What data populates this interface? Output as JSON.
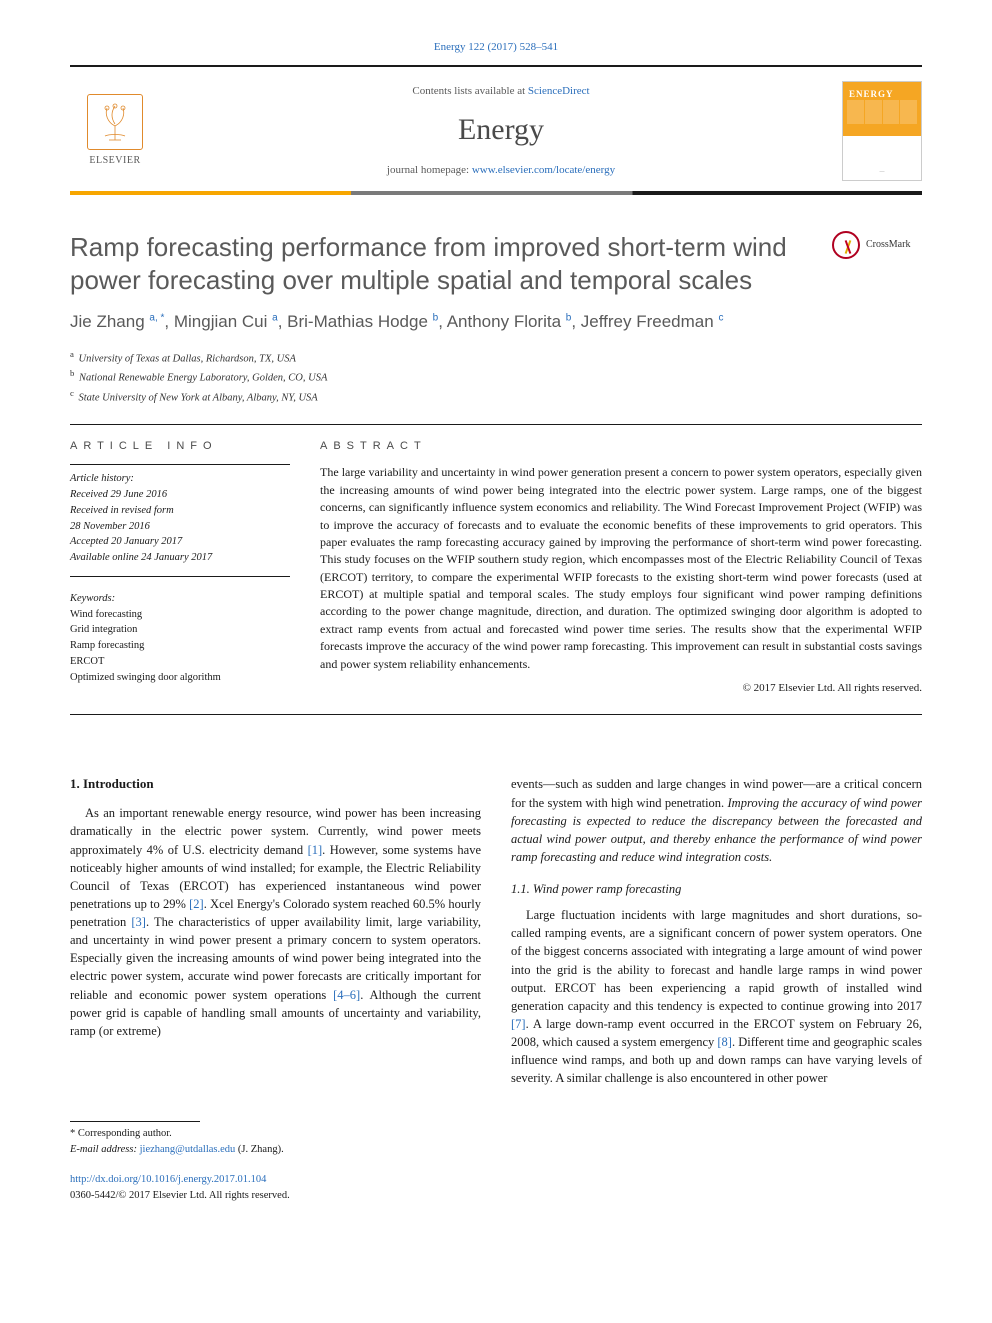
{
  "citation": "Energy 122 (2017) 528–541",
  "header": {
    "contents_prefix": "Contents lists available at ",
    "contents_link": "ScienceDirect",
    "journal": "Energy",
    "homepage_prefix": "journal homepage: ",
    "homepage_url": "www.elsevier.com/locate/energy",
    "publisher_name": "ELSEVIER",
    "cover_title": "ENERGY"
  },
  "article": {
    "title": "Ramp forecasting performance from improved short-term wind power forecasting over multiple spatial and temporal scales",
    "crossmark_label": "CrossMark",
    "authors_html": "Jie Zhang <sup>a, *</sup>, Mingjian Cui <sup>a</sup>, Bri-Mathias Hodge <sup>b</sup>, Anthony Florita <sup>b</sup>, Jeffrey Freedman <sup>c</sup>",
    "affiliations": [
      {
        "sup": "a",
        "text": "University of Texas at Dallas, Richardson, TX, USA"
      },
      {
        "sup": "b",
        "text": "National Renewable Energy Laboratory, Golden, CO, USA"
      },
      {
        "sup": "c",
        "text": "State University of New York at Albany, Albany, NY, USA"
      }
    ]
  },
  "info": {
    "heading": "ARTICLE INFO",
    "history_label": "Article history:",
    "history": [
      "Received 29 June 2016",
      "Received in revised form",
      "28 November 2016",
      "Accepted 20 January 2017",
      "Available online 24 January 2017"
    ],
    "keywords_label": "Keywords:",
    "keywords": [
      "Wind forecasting",
      "Grid integration",
      "Ramp forecasting",
      "ERCOT",
      "Optimized swinging door algorithm"
    ]
  },
  "abstract": {
    "heading": "ABSTRACT",
    "text": "The large variability and uncertainty in wind power generation present a concern to power system operators, especially given the increasing amounts of wind power being integrated into the electric power system. Large ramps, one of the biggest concerns, can significantly influence system economics and reliability. The Wind Forecast Improvement Project (WFIP) was to improve the accuracy of forecasts and to evaluate the economic benefits of these improvements to grid operators. This paper evaluates the ramp forecasting accuracy gained by improving the performance of short-term wind power forecasting. This study focuses on the WFIP southern study region, which encompasses most of the Electric Reliability Council of Texas (ERCOT) territory, to compare the experimental WFIP forecasts to the existing short-term wind power forecasts (used at ERCOT) at multiple spatial and temporal scales. The study employs four significant wind power ramping definitions according to the power change magnitude, direction, and duration. The optimized swinging door algorithm is adopted to extract ramp events from actual and forecasted wind power time series. The results show that the experimental WFIP forecasts improve the accuracy of the wind power ramp forecasting. This improvement can result in substantial costs savings and power system reliability enhancements.",
    "copyright": "© 2017 Elsevier Ltd. All rights reserved."
  },
  "body": {
    "intro_heading": "1. Introduction",
    "intro_p1_a": "As an important renewable energy resource, wind power has been increasing dramatically in the electric power system. Currently, wind power meets approximately 4% of U.S. electricity demand ",
    "ref1": "[1]",
    "intro_p1_b": ". However, some systems have noticeably higher amounts of wind installed; for example, the Electric Reliability Council of Texas (ERCOT) has experienced instantaneous wind power penetrations up to 29% ",
    "ref2": "[2]",
    "intro_p1_c": ". Xcel Energy's Colorado system reached 60.5% hourly penetration ",
    "ref3": "[3]",
    "intro_p1_d": ". The characteristics of upper availability limit, large variability, and uncertainty in wind power present a primary concern to system operators. Especially given the increasing amounts of wind power being integrated into the electric power system, accurate wind power forecasts are critically important for reliable and economic power system operations ",
    "ref4_6": "[4–6]",
    "intro_p1_e": ". Although the current power grid is capable of handling small amounts of uncertainty and variability, ramp (or extreme) ",
    "col2_p1_a": "events—such as sudden and large changes in wind power—are a critical concern for the system with high wind penetration. ",
    "col2_p1_emph": "Improving the accuracy of wind power forecasting is expected to reduce the discrepancy between the forecasted and actual wind power output, and thereby enhance the performance of wind power ramp forecasting and reduce wind integration costs.",
    "subsection_heading": "1.1. Wind power ramp forecasting",
    "col2_p2_a": "Large fluctuation incidents with large magnitudes and short durations, so-called ramping events, are a significant concern of power system operators. One of the biggest concerns associated with integrating a large amount of wind power into the grid is the ability to forecast and handle large ramps in wind power output. ERCOT has been experiencing a rapid growth of installed wind generation capacity and this tendency is expected to continue growing into 2017 ",
    "ref7": "[7]",
    "col2_p2_b": ". A large down-ramp event occurred in the ERCOT system on February 26, 2008, which caused a system emergency ",
    "ref8": "[8]",
    "col2_p2_c": ". Different time and geographic scales influence wind ramps, and both up and down ramps can have varying levels of severity. A similar challenge is also encountered in other power"
  },
  "footer": {
    "corr_label": "* Corresponding author.",
    "email_label": "E-mail address:",
    "email": "jiezhang@utdallas.edu",
    "email_name": "(J. Zhang).",
    "doi_url": "http://dx.doi.org/10.1016/j.energy.2017.01.104",
    "issn_copyright": "0360-5442/© 2017 Elsevier Ltd. All rights reserved."
  },
  "colors": {
    "link": "#2a6ebb",
    "accent_orange": "#f5a623",
    "text_gray": "#5a5a5a",
    "rule": "#1a1a1a"
  }
}
